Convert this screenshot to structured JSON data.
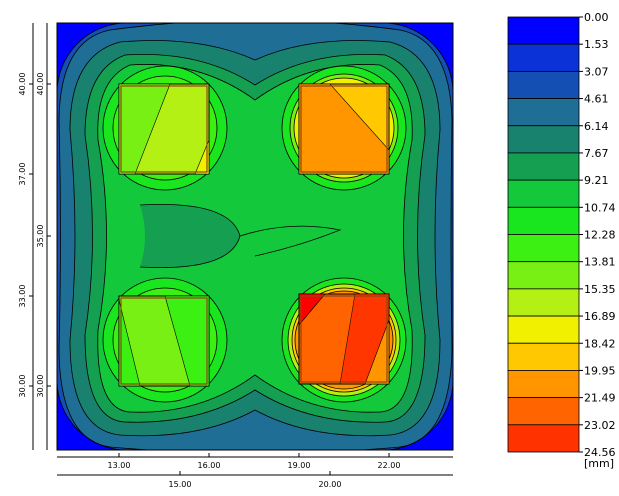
{
  "chart_data": {
    "type": "heatmap",
    "title": "",
    "unit_label": "[mm]",
    "x_ticks_top_row": [
      "13.00",
      "16.00",
      "19.00",
      "22.00"
    ],
    "x_ticks_bottom_row": [
      "15.00",
      "20.00"
    ],
    "y_ticks_outer": [
      "40.00",
      "37.00",
      "33.00",
      "30.00"
    ],
    "y_ticks_inner": [
      "40.00",
      "35.00",
      "30.00"
    ],
    "legend": {
      "labels": [
        "0.00",
        "1.53",
        "3.07",
        "4.61",
        "6.14",
        "7.67",
        "9.21",
        "10.74",
        "12.28",
        "13.81",
        "15.35",
        "16.89",
        "18.42",
        "19.95",
        "21.49",
        "23.02",
        "24.56"
      ],
      "colors": [
        "#0000ff",
        "#0a32d7",
        "#1450b4",
        "#1e6e96",
        "#19826e",
        "#14a050",
        "#14c83c",
        "#19e61e",
        "#3cf014",
        "#78f014",
        "#b4f014",
        "#f0f000",
        "#ffc800",
        "#ff9600",
        "#ff6400",
        "#ff3200",
        "#ff0000"
      ]
    },
    "grid": false
  }
}
